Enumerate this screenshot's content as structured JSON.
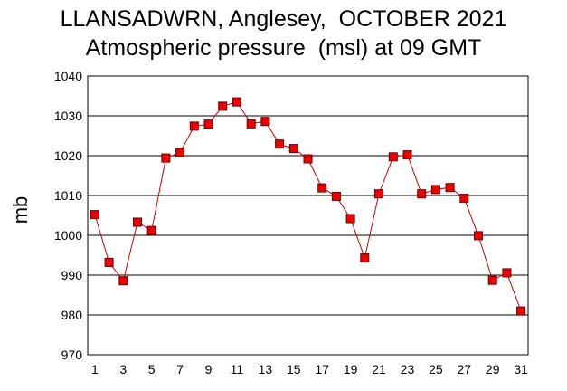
{
  "chart_data": {
    "type": "line",
    "title": "LLANSADWRN, Anglesey,  OCTOBER 2021",
    "subtitle": "Atmospheric pressure  (msl) at 09 GMT",
    "xlabel": "",
    "ylabel": "mb",
    "x": [
      1,
      2,
      3,
      4,
      5,
      6,
      7,
      8,
      9,
      10,
      11,
      12,
      13,
      14,
      15,
      16,
      17,
      18,
      19,
      20,
      21,
      22,
      23,
      24,
      25,
      26,
      27,
      28,
      29,
      30,
      31
    ],
    "xticks": [
      1,
      3,
      5,
      7,
      9,
      11,
      13,
      15,
      17,
      19,
      21,
      23,
      25,
      27,
      29,
      31
    ],
    "xlim": [
      0.5,
      31.5
    ],
    "ylim": [
      970,
      1040
    ],
    "yticks": [
      970,
      980,
      990,
      1000,
      1010,
      1020,
      1030,
      1040
    ],
    "grid": true,
    "series": [
      {
        "values": [
          1005.2,
          993.2,
          988.6,
          1003.3,
          1001.2,
          1019.4,
          1020.8,
          1027.4,
          1027.9,
          1032.4,
          1033.5,
          1028.0,
          1028.6,
          1022.9,
          1021.8,
          1019.2,
          1011.9,
          1009.8,
          1004.2,
          994.3,
          1010.4,
          1019.7,
          1020.2,
          1010.4,
          1011.5,
          1012.0,
          1009.3,
          999.9,
          988.7,
          990.6,
          981.0
        ],
        "line_color": "#cc0000",
        "marker_color": "#ee0000",
        "marker_edge": "#660000"
      }
    ]
  }
}
